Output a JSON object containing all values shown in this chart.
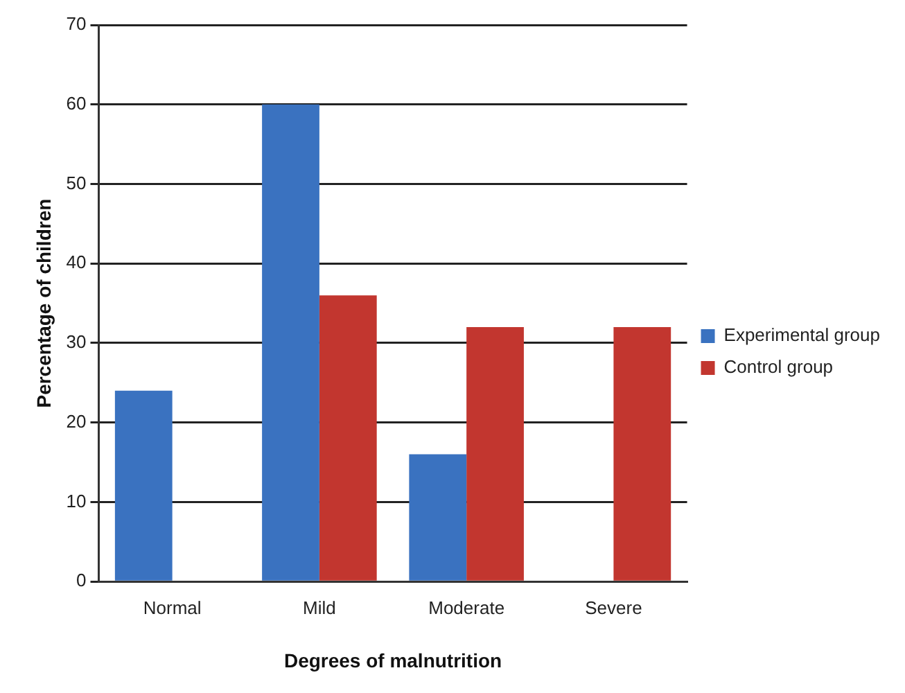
{
  "chart_data": {
    "type": "bar",
    "xlabel": "Degrees of malnutrition",
    "ylabel": "Percentage of children",
    "categories": [
      "Normal",
      "Mild",
      "Moderate",
      "Severe"
    ],
    "series": [
      {
        "name": "Experimental group",
        "color": "#3a72c0",
        "values": [
          24,
          60,
          16,
          0
        ]
      },
      {
        "name": "Control group",
        "color": "#c2362f",
        "values": [
          0,
          36,
          32,
          32
        ]
      }
    ],
    "ylim": [
      0,
      70
    ],
    "yticks": [
      0,
      10,
      20,
      30,
      40,
      50,
      60,
      70
    ],
    "grid": "y",
    "legend": "right"
  }
}
